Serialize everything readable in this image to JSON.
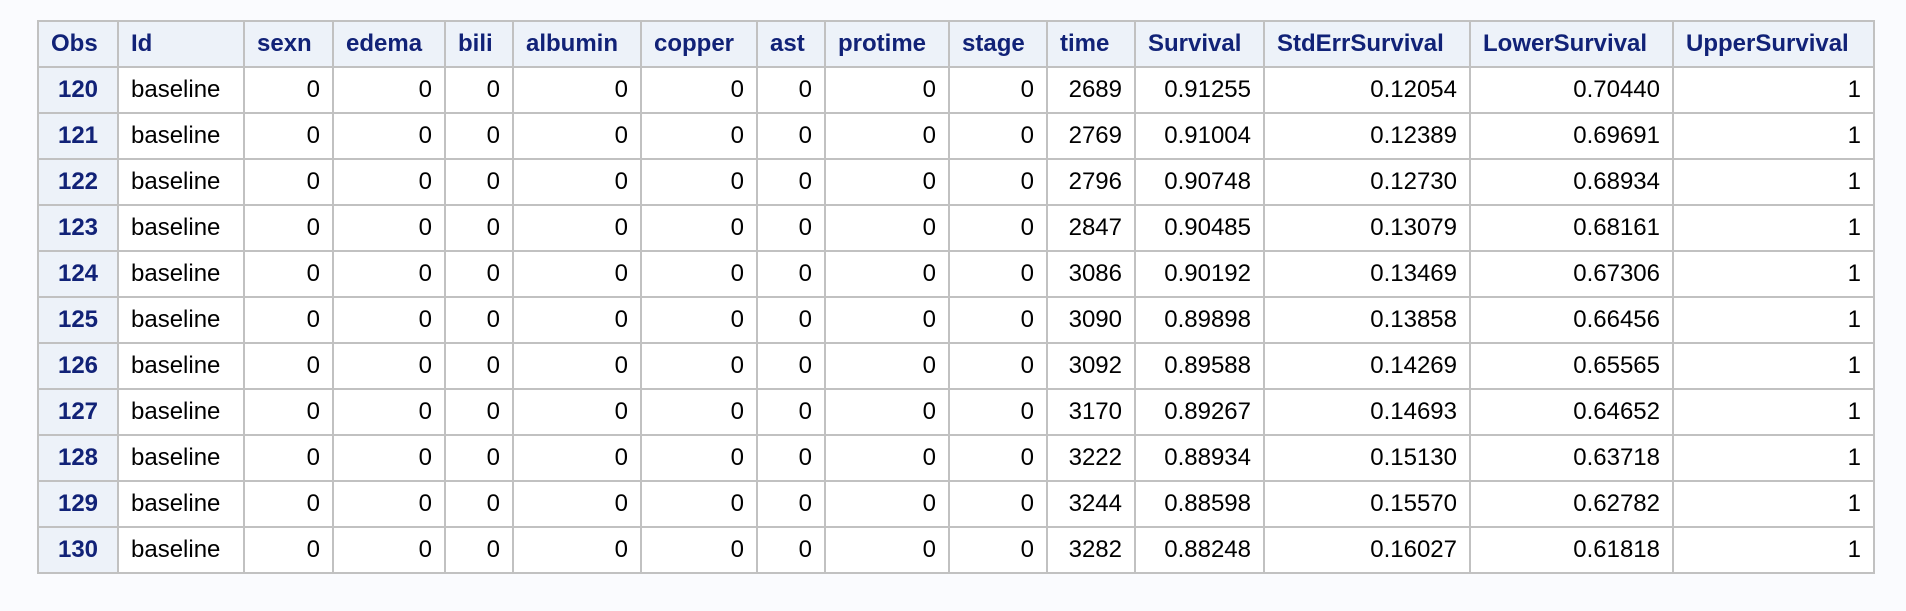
{
  "table": {
    "columns": [
      "Obs",
      "Id",
      "sexn",
      "edema",
      "bili",
      "albumin",
      "copper",
      "ast",
      "protime",
      "stage",
      "time",
      "Survival",
      "StdErrSurvival",
      "LowerSurvival",
      "UpperSurvival"
    ],
    "rows": [
      [
        "120",
        "baseline",
        "0",
        "0",
        "0",
        "0",
        "0",
        "0",
        "0",
        "0",
        "2689",
        "0.91255",
        "0.12054",
        "0.70440",
        "1"
      ],
      [
        "121",
        "baseline",
        "0",
        "0",
        "0",
        "0",
        "0",
        "0",
        "0",
        "0",
        "2769",
        "0.91004",
        "0.12389",
        "0.69691",
        "1"
      ],
      [
        "122",
        "baseline",
        "0",
        "0",
        "0",
        "0",
        "0",
        "0",
        "0",
        "0",
        "2796",
        "0.90748",
        "0.12730",
        "0.68934",
        "1"
      ],
      [
        "123",
        "baseline",
        "0",
        "0",
        "0",
        "0",
        "0",
        "0",
        "0",
        "0",
        "2847",
        "0.90485",
        "0.13079",
        "0.68161",
        "1"
      ],
      [
        "124",
        "baseline",
        "0",
        "0",
        "0",
        "0",
        "0",
        "0",
        "0",
        "0",
        "3086",
        "0.90192",
        "0.13469",
        "0.67306",
        "1"
      ],
      [
        "125",
        "baseline",
        "0",
        "0",
        "0",
        "0",
        "0",
        "0",
        "0",
        "0",
        "3090",
        "0.89898",
        "0.13858",
        "0.66456",
        "1"
      ],
      [
        "126",
        "baseline",
        "0",
        "0",
        "0",
        "0",
        "0",
        "0",
        "0",
        "0",
        "3092",
        "0.89588",
        "0.14269",
        "0.65565",
        "1"
      ],
      [
        "127",
        "baseline",
        "0",
        "0",
        "0",
        "0",
        "0",
        "0",
        "0",
        "0",
        "3170",
        "0.89267",
        "0.14693",
        "0.64652",
        "1"
      ],
      [
        "128",
        "baseline",
        "0",
        "0",
        "0",
        "0",
        "0",
        "0",
        "0",
        "0",
        "3222",
        "0.88934",
        "0.15130",
        "0.63718",
        "1"
      ],
      [
        "129",
        "baseline",
        "0",
        "0",
        "0",
        "0",
        "0",
        "0",
        "0",
        "0",
        "3244",
        "0.88598",
        "0.15570",
        "0.62782",
        "1"
      ],
      [
        "130",
        "baseline",
        "0",
        "0",
        "0",
        "0",
        "0",
        "0",
        "0",
        "0",
        "3282",
        "0.88248",
        "0.16027",
        "0.61818",
        "1"
      ]
    ]
  },
  "colors": {
    "header_background": "#edf2f9",
    "header_text": "#112277",
    "border": "#c1c1c1",
    "page_background": "#fafbfe"
  }
}
